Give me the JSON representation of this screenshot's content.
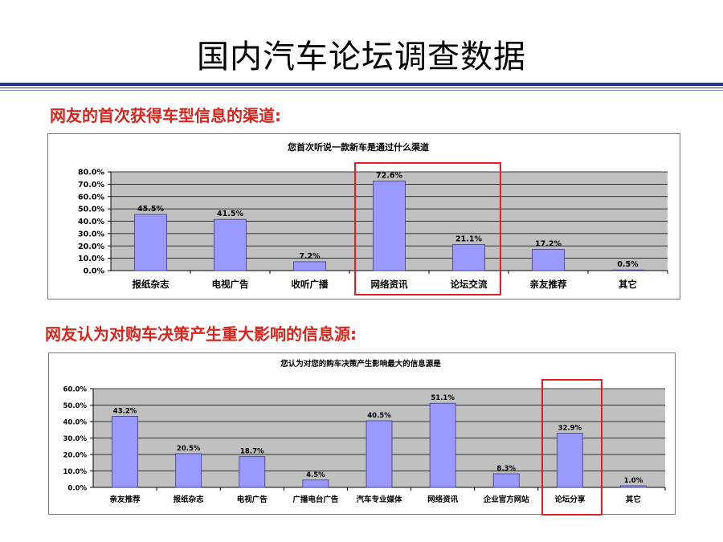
{
  "slide": {
    "title": "国内汽车论坛调查数据",
    "heading1": "网友的首次获得车型信息的渠道:",
    "heading2": "网友认为对购车决策产生重大影响的信息源:"
  },
  "colors": {
    "bar": "#9999ff",
    "plot_bg": "#c0c0c0",
    "heading": "#d7261e",
    "highlight": "#e31e24",
    "rule": "#26328f"
  },
  "chart_data": [
    {
      "type": "bar",
      "title": "您首次听说一款新车是通过什么渠道",
      "categories": [
        "报纸杂志",
        "电视广告",
        "收听广播",
        "网络资讯",
        "论坛交流",
        "亲友推荐",
        "其它"
      ],
      "values": [
        45.5,
        41.5,
        7.2,
        72.6,
        21.1,
        17.2,
        0.5
      ],
      "value_labels": [
        "45.5%",
        "41.5%",
        "7.2%",
        "72.6%",
        "21.1%",
        "17.2%",
        "0.5%"
      ],
      "ylim": [
        0,
        80
      ],
      "yticks": [
        "0.0%",
        "10.0%",
        "20.0%",
        "30.0%",
        "40.0%",
        "50.0%",
        "60.0%",
        "70.0%",
        "80.0%"
      ],
      "grid": true,
      "highlighted_categories": [
        "网络资讯",
        "论坛交流"
      ]
    },
    {
      "type": "bar",
      "title": "您认为对您的购车决策产生影响最大的信息源是",
      "categories": [
        "亲友推荐",
        "报纸杂志",
        "电视广告",
        "广播电台广告",
        "汽车专业媒体",
        "网络资讯",
        "企业官方网站",
        "论坛分享",
        "其它"
      ],
      "values": [
        43.2,
        20.5,
        18.7,
        4.5,
        40.5,
        51.1,
        8.3,
        32.9,
        1.0
      ],
      "value_labels": [
        "43.2%",
        "20.5%",
        "18.7%",
        "4.5%",
        "40.5%",
        "51.1%",
        "8.3%",
        "32.9%",
        "1.0%"
      ],
      "ylim": [
        0,
        60
      ],
      "yticks": [
        "0.0%",
        "10.0%",
        "20.0%",
        "30.0%",
        "40.0%",
        "50.0%",
        "60.0%"
      ],
      "grid": true,
      "highlighted_categories": [
        "论坛分享"
      ]
    }
  ]
}
